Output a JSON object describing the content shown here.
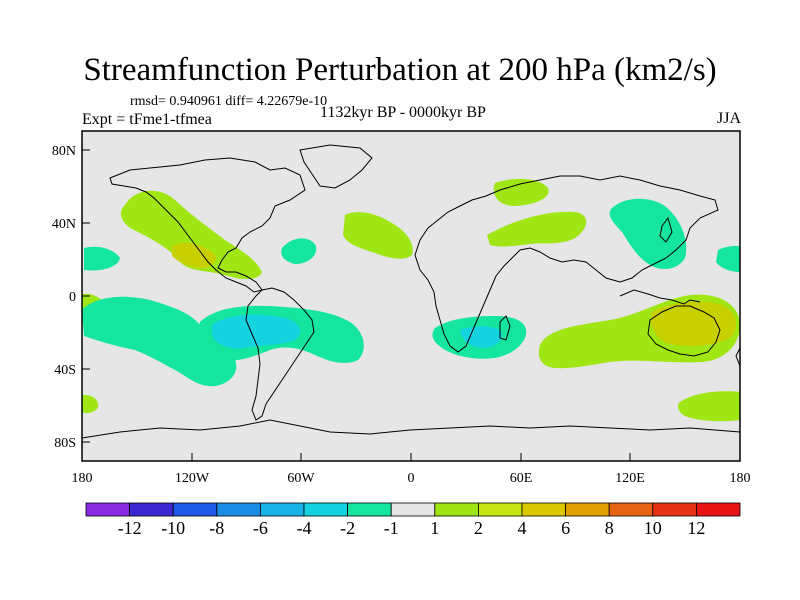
{
  "title": "Streamfunction Perturbation at 200 hPa (km2/s)",
  "stats": "rmsd= 0.940961 diff= 4.22679e-10",
  "experiment": "Expt = tFme1-tfmea",
  "period": "1132kyr BP - 0000kyr BP",
  "season": "JJA",
  "y_axis_labels": [
    "80N",
    "40N",
    "0",
    "40S",
    "80S"
  ],
  "x_axis_labels": [
    "180",
    "120W",
    "60W",
    "0",
    "60E",
    "120E",
    "180"
  ],
  "colorbar": {
    "labels": [
      "-12",
      "-10",
      "-8",
      "-6",
      "-4",
      "-2",
      "-1",
      "1",
      "2",
      "4",
      "6",
      "8",
      "10",
      "12"
    ],
    "colors": [
      "#8a2be2",
      "#3c28d2",
      "#1e5ae6",
      "#1a8ce6",
      "#19b4e6",
      "#14d2e0",
      "#14e6a0",
      "#e6e6e6",
      "#a0e614",
      "#c8e614",
      "#dcc800",
      "#e0a000",
      "#e66414",
      "#e63214",
      "#e61414"
    ]
  },
  "map_colors": {
    "background": "#e6e6e6",
    "pos1": "#a0e614",
    "pos2": "#c8d000",
    "neg1": "#14e6a0",
    "neg2": "#14d2e0",
    "land": "#000000"
  }
}
